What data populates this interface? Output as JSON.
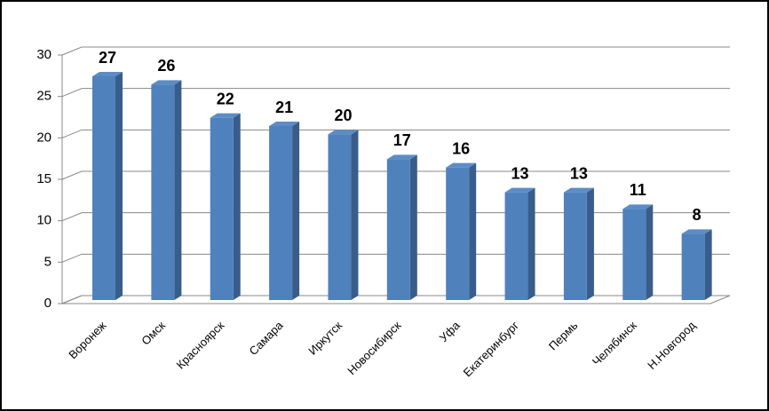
{
  "chart_data": {
    "type": "bar3d",
    "categories": [
      "Воронеж",
      "Омск",
      "Красноярск",
      "Самара",
      "Иркутск",
      "Новосибирск",
      "Уфа",
      "Екатеринбург",
      "Пермь",
      "Челябинск",
      "Н.Новгород"
    ],
    "values": [
      27,
      26,
      22,
      21,
      20,
      17,
      16,
      13,
      13,
      11,
      8
    ],
    "color": "#4f81bd",
    "ylim": [
      0,
      30
    ],
    "yticks": [
      0,
      5,
      10,
      15,
      20,
      25,
      30
    ],
    "grid": true
  }
}
